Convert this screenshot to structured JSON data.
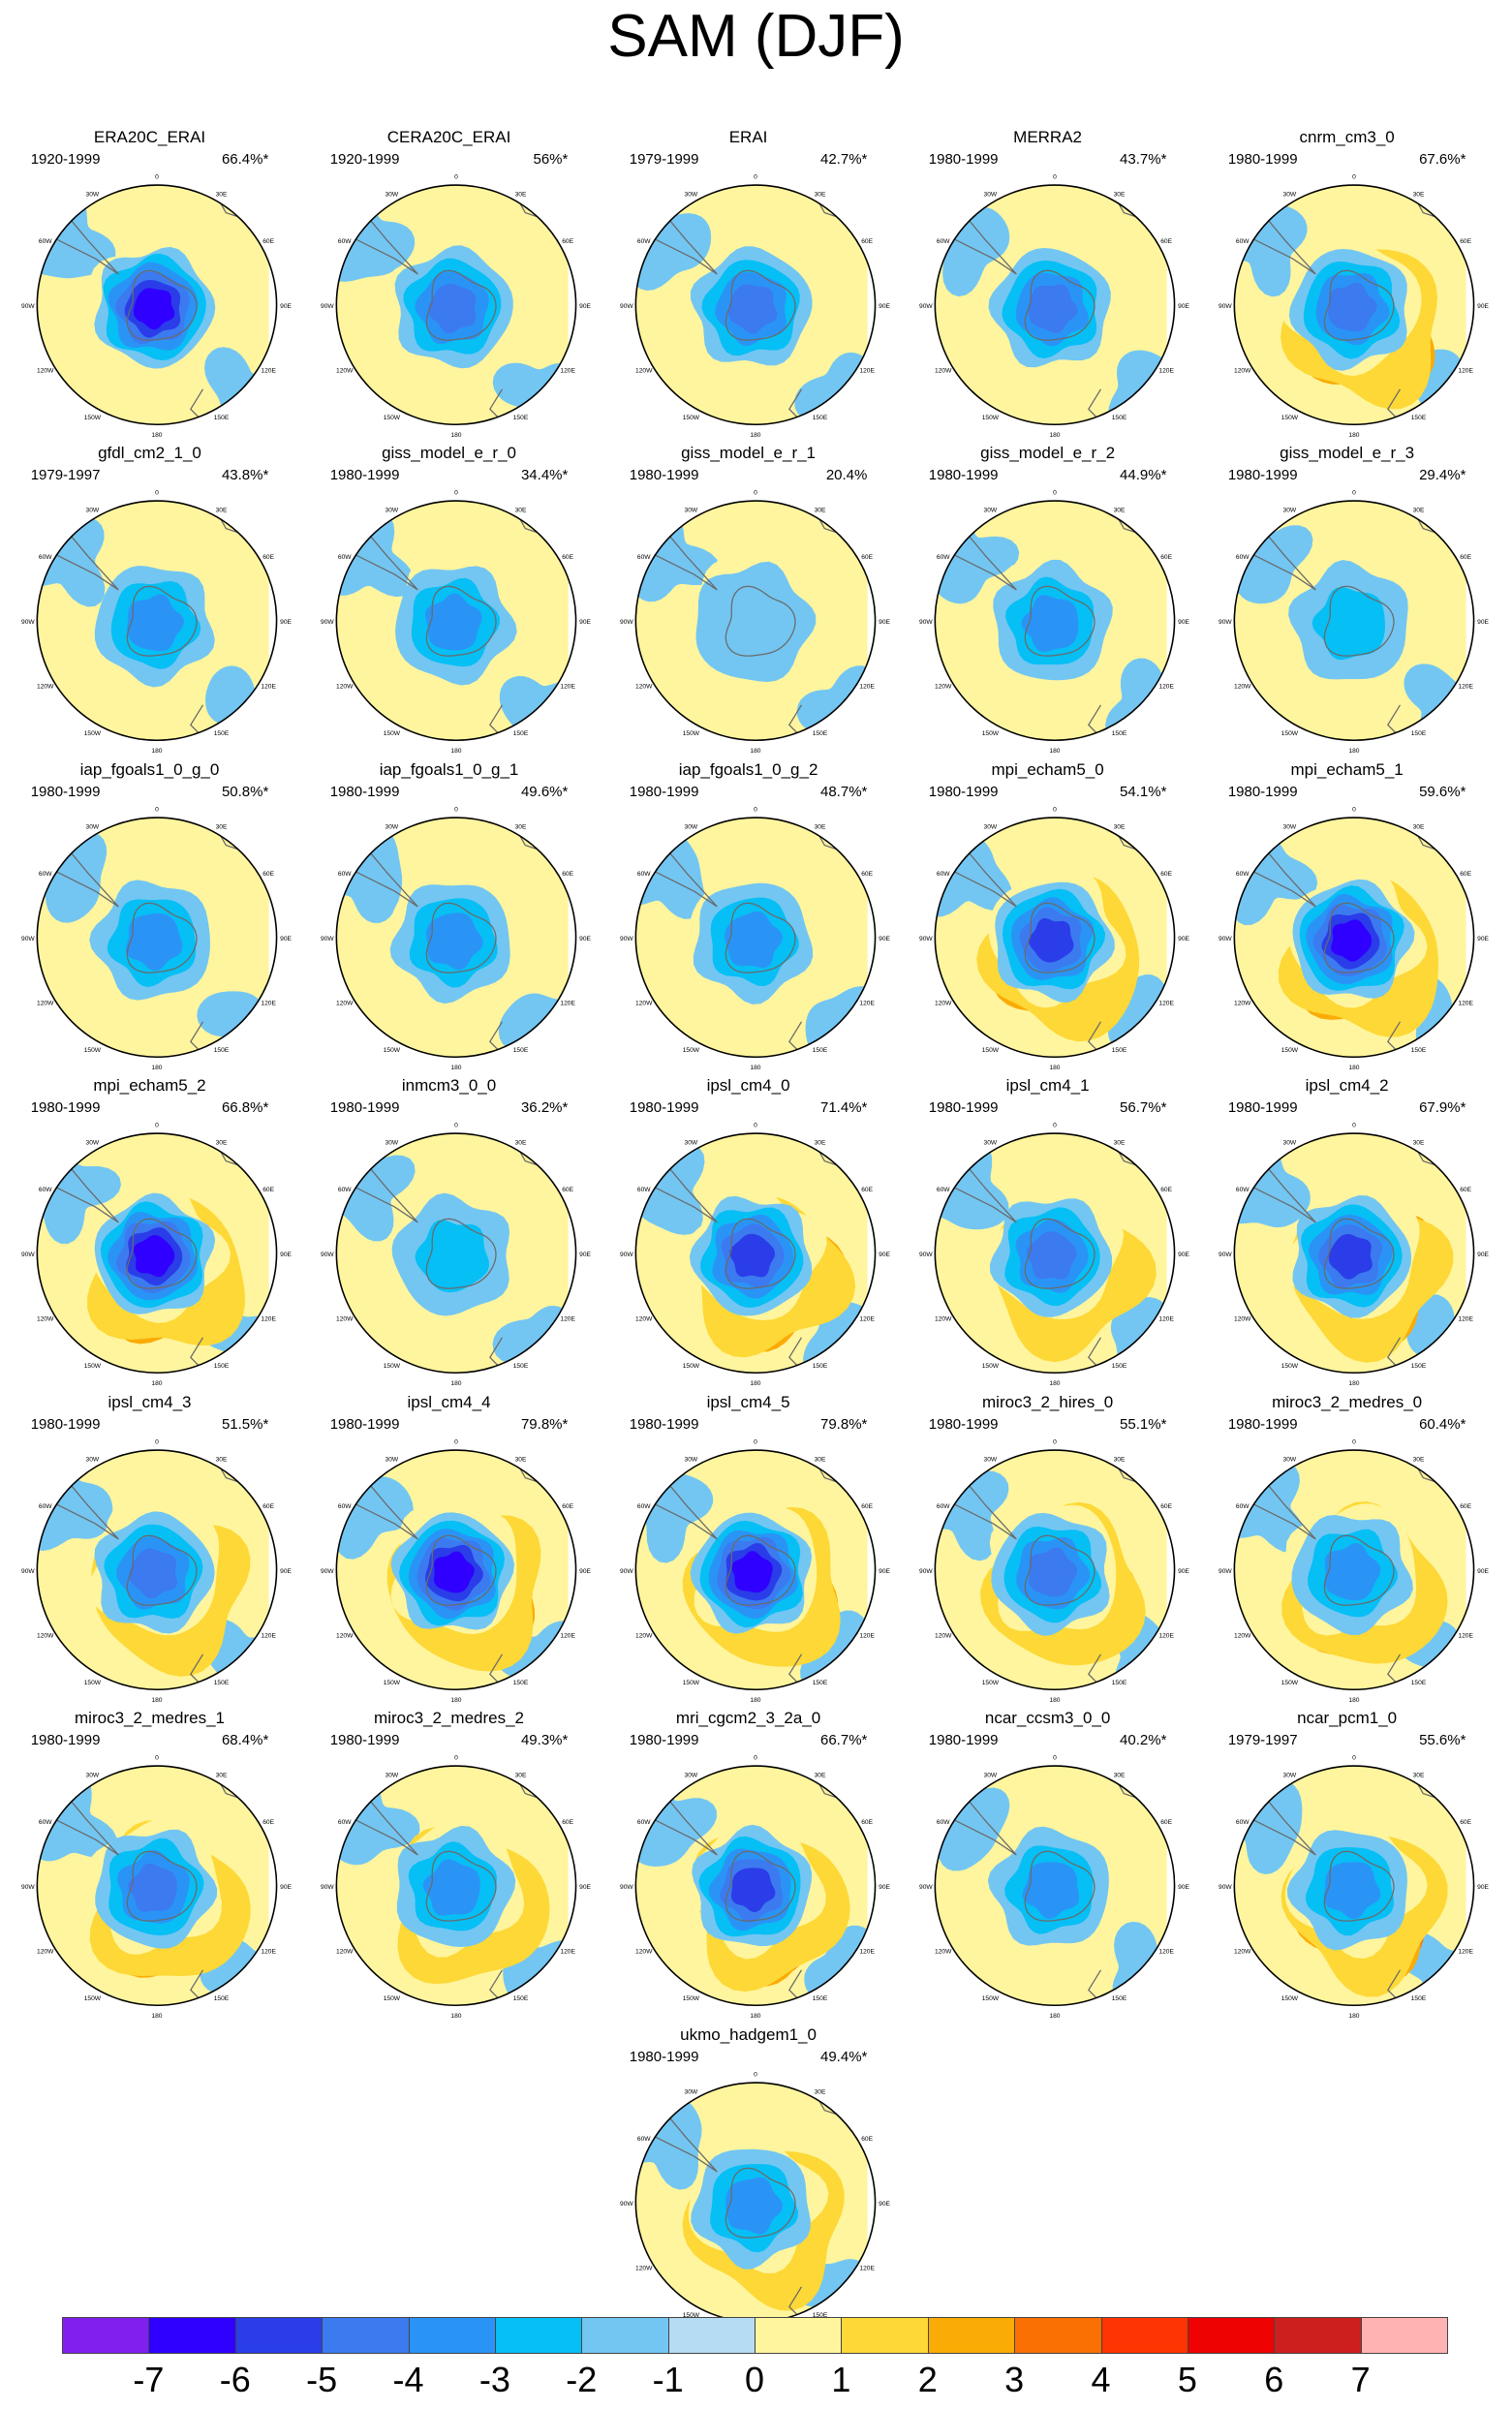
{
  "title": "SAM (DJF)",
  "map_labels": {
    "lon_top": "0",
    "lon_30e": "30E",
    "lon_60e": "60E",
    "lon_90e": "90E",
    "lon_120e": "120E",
    "lon_150e": "150E",
    "lon_180": "180",
    "lon_150w": "150W",
    "lon_120w": "120W",
    "lon_90w": "90W",
    "lon_60w": "60W",
    "lon_30w": "30W"
  },
  "panels": [
    {
      "name": "ERA20C_ERAI",
      "period": "1920-1999",
      "pct": "66.4%*",
      "center": -6,
      "ring": 1,
      "mid": 1
    },
    {
      "name": "CERA20C_ERAI",
      "period": "1920-1999",
      "pct": "56%*",
      "center": -4,
      "ring": 1,
      "mid": 1
    },
    {
      "name": "ERAI",
      "period": "1979-1999",
      "pct": "42.7%*",
      "center": -4,
      "ring": 2,
      "mid": 1
    },
    {
      "name": "MERRA2",
      "period": "1980-1999",
      "pct": "43.7%*",
      "center": -4,
      "ring": 2,
      "mid": 1
    },
    {
      "name": "cnrm_cm3_0",
      "period": "1980-1999",
      "pct": "67.6%*",
      "center": -4,
      "ring": 2,
      "mid": 3
    },
    {
      "name": "gfdl_cm2_1_0",
      "period": "1979-1997",
      "pct": "43.8%*",
      "center": -3,
      "ring": 2,
      "mid": 1
    },
    {
      "name": "giss_model_e_r_0",
      "period": "1980-1999",
      "pct": "34.4%*",
      "center": -3,
      "ring": 2,
      "mid": 1
    },
    {
      "name": "giss_model_e_r_1",
      "period": "1980-1999",
      "pct": "20.4%",
      "center": -1,
      "ring": 1,
      "mid": 1
    },
    {
      "name": "giss_model_e_r_2",
      "period": "1980-1999",
      "pct": "44.9%*",
      "center": -3,
      "ring": 2,
      "mid": 1
    },
    {
      "name": "giss_model_e_r_3",
      "period": "1980-1999",
      "pct": "29.4%*",
      "center": -2,
      "ring": 1,
      "mid": 1
    },
    {
      "name": "iap_fgoals1_0_g_0",
      "period": "1980-1999",
      "pct": "50.8%*",
      "center": -3,
      "ring": 2,
      "mid": 1
    },
    {
      "name": "iap_fgoals1_0_g_1",
      "period": "1980-1999",
      "pct": "49.6%*",
      "center": -3,
      "ring": 2,
      "mid": 1
    },
    {
      "name": "iap_fgoals1_0_g_2",
      "period": "1980-1999",
      "pct": "48.7%*",
      "center": -3,
      "ring": 2,
      "mid": 1
    },
    {
      "name": "mpi_echam5_0",
      "period": "1980-1999",
      "pct": "54.1%*",
      "center": -5,
      "ring": 2,
      "mid": 3
    },
    {
      "name": "mpi_echam5_1",
      "period": "1980-1999",
      "pct": "59.6%*",
      "center": -6,
      "ring": 2,
      "mid": 3
    },
    {
      "name": "mpi_echam5_2",
      "period": "1980-1999",
      "pct": "66.8%*",
      "center": -6,
      "ring": 2,
      "mid": 3
    },
    {
      "name": "inmcm3_0_0",
      "period": "1980-1999",
      "pct": "36.2%*",
      "center": -2,
      "ring": 2,
      "mid": 1
    },
    {
      "name": "ipsl_cm4_0",
      "period": "1980-1999",
      "pct": "71.4%*",
      "center": -5,
      "ring": 2,
      "mid": 3
    },
    {
      "name": "ipsl_cm4_1",
      "period": "1980-1999",
      "pct": "56.7%*",
      "center": -4,
      "ring": 2,
      "mid": 2
    },
    {
      "name": "ipsl_cm4_2",
      "period": "1980-1999",
      "pct": "67.9%*",
      "center": -5,
      "ring": 2,
      "mid": 3
    },
    {
      "name": "ipsl_cm4_3",
      "period": "1980-1999",
      "pct": "51.5%*",
      "center": -4,
      "ring": 2,
      "mid": 2
    },
    {
      "name": "ipsl_cm4_4",
      "period": "1980-1999",
      "pct": "79.8%*",
      "center": -6,
      "ring": 3,
      "mid": 3
    },
    {
      "name": "ipsl_cm4_5",
      "period": "1980-1999",
      "pct": "79.8%*",
      "center": -6,
      "ring": 3,
      "mid": 3
    },
    {
      "name": "miroc3_2_hires_0",
      "period": "1980-1999",
      "pct": "55.1%*",
      "center": -4,
      "ring": 2,
      "mid": 3
    },
    {
      "name": "miroc3_2_medres_0",
      "period": "1980-1999",
      "pct": "60.4%*",
      "center": -3,
      "ring": 2,
      "mid": 3
    },
    {
      "name": "miroc3_2_medres_1",
      "period": "1980-1999",
      "pct": "68.4%*",
      "center": -4,
      "ring": 2,
      "mid": 3
    },
    {
      "name": "miroc3_2_medres_2",
      "period": "1980-1999",
      "pct": "49.3%*",
      "center": -3,
      "ring": 2,
      "mid": 2
    },
    {
      "name": "mri_cgcm2_3_2a_0",
      "period": "1980-1999",
      "pct": "66.7%*",
      "center": -5,
      "ring": 2,
      "mid": 4
    },
    {
      "name": "ncar_ccsm3_0_0",
      "period": "1980-1999",
      "pct": "40.2%*",
      "center": -3,
      "ring": 2,
      "mid": 1
    },
    {
      "name": "ncar_pcm1_0",
      "period": "1979-1997",
      "pct": "55.6%*",
      "center": -3,
      "ring": 2,
      "mid": 4
    },
    {
      "name": "ukmo_hadgem1_0",
      "period": "1980-1999",
      "pct": "49.4%*",
      "center": -3,
      "ring": 2,
      "mid": 2
    }
  ],
  "colorbar": {
    "colors": [
      "#8020ef",
      "#2f00ff",
      "#2a3de8",
      "#3c7af0",
      "#2a94f6",
      "#06bff5",
      "#73c6f2",
      "#b6dcf3",
      "#fff59e",
      "#fdd836",
      "#fbab05",
      "#fa7003",
      "#fe3402",
      "#ee0202",
      "#cd1f1d",
      "#ffb3b3"
    ],
    "labels": [
      "-7",
      "-6",
      "-5",
      "-4",
      "-3",
      "-2",
      "-1",
      "0",
      "1",
      "2",
      "3",
      "4",
      "5",
      "6",
      "7"
    ]
  }
}
